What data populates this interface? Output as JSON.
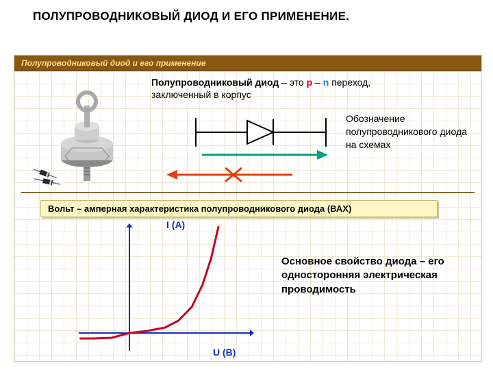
{
  "title": "ПОЛУПРОВОДНИКОВЫЙ ДИОД И ЕГО ПРИМЕНЕНИЕ.",
  "panel_header": "Полупроводниковый диод и его применение",
  "definition": {
    "lead": "Полупроводниковый диод",
    "dash": " – это ",
    "p": "p",
    "mid": " – ",
    "n": "n",
    "tail": " переход,",
    "sub": "заключенный в корпус"
  },
  "symbol_label": "Обозначение полупроводникового диода на схемах",
  "vac_title": "Вольт – амперная характеристика полупроводникового диода (ВАХ)",
  "chart": {
    "type": "line",
    "y_axis_label": "I (A)",
    "x_axis_label": "U (B)",
    "axis_color": "#1030c0",
    "curve_color": "#c9001e",
    "curve_width": 3,
    "xlim": [
      -60,
      140
    ],
    "ylim": [
      -30,
      160
    ],
    "points": [
      [
        -55,
        -8
      ],
      [
        -40,
        -8
      ],
      [
        -20,
        -7
      ],
      [
        0,
        0
      ],
      [
        20,
        3
      ],
      [
        40,
        8
      ],
      [
        55,
        18
      ],
      [
        70,
        38
      ],
      [
        82,
        70
      ],
      [
        92,
        110
      ],
      [
        100,
        155
      ]
    ]
  },
  "chart_text": "Основное свойство диода – его односторонняя электрическая проводимость",
  "colors": {
    "panel_header_bg": "#8a5614",
    "panel_header_fg": "#ffe07a",
    "grid": "#d8cfa8",
    "fwd_arrow": "#00a080",
    "rev_arrow": "#e04010",
    "vac_bg": "#fff6c8",
    "p": "#c9001e",
    "n": "#0080c0"
  },
  "device": {
    "body_color": "#c8c8c8",
    "body_shadow": "#8a8a8a",
    "ring_color": "#b0b0b0",
    "bolt_color": "#9a9a9a",
    "small_diode_color": "#2a2a2a"
  }
}
